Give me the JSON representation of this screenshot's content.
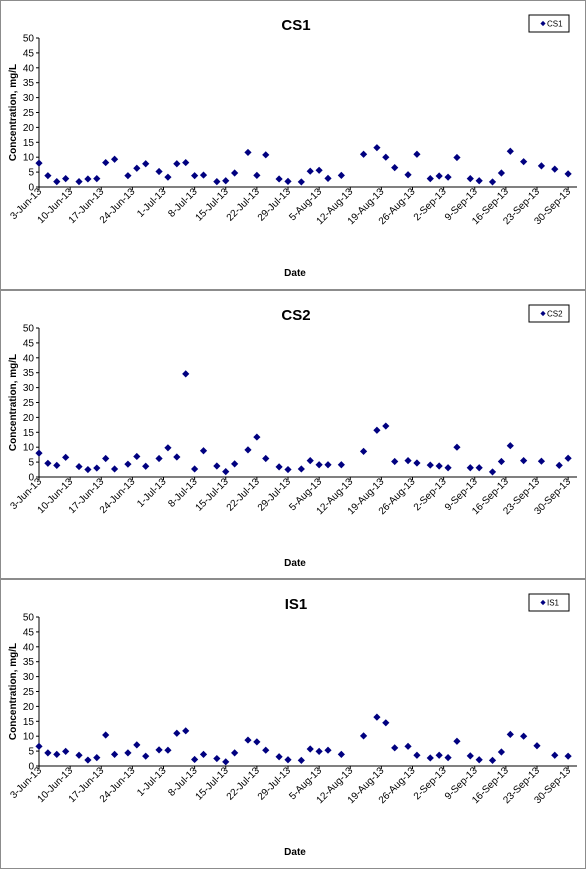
{
  "chart_data": [
    {
      "type": "scatter",
      "title": "CS1",
      "xlabel": "Date",
      "ylabel": "Concentration, mg/L",
      "legend": [
        "CS1"
      ],
      "legend_position": "top-right",
      "ylim": [
        0,
        50
      ],
      "yticks": [
        0,
        5,
        10,
        15,
        20,
        25,
        30,
        35,
        40,
        45,
        50
      ],
      "xlim": [
        "2013-06-03",
        "2013-10-02"
      ],
      "xtick_labels": [
        "3-Jun-13",
        "10-Jun-13",
        "17-Jun-13",
        "24-Jun-13",
        "1-Jul-13",
        "8-Jul-13",
        "15-Jul-13",
        "22-Jul-13",
        "29-Jul-13",
        "5-Aug-13",
        "12-Aug-13",
        "19-Aug-13",
        "26-Aug-13",
        "2-Sep-13",
        "9-Sep-13",
        "16-Sep-13",
        "23-Sep-13",
        "30-Sep-13"
      ],
      "marker_color": "#000080",
      "series": [
        {
          "name": "CS1",
          "points": [
            [
              "2013-06-03",
              8.0
            ],
            [
              "2013-06-05",
              3.8
            ],
            [
              "2013-06-07",
              1.8
            ],
            [
              "2013-06-09",
              2.8
            ],
            [
              "2013-06-12",
              1.8
            ],
            [
              "2013-06-14",
              2.7
            ],
            [
              "2013-06-16",
              2.8
            ],
            [
              "2013-06-18",
              8.2
            ],
            [
              "2013-06-20",
              9.3
            ],
            [
              "2013-06-23",
              3.8
            ],
            [
              "2013-06-25",
              6.3
            ],
            [
              "2013-06-27",
              7.8
            ],
            [
              "2013-06-30",
              5.2
            ],
            [
              "2013-07-02",
              3.3
            ],
            [
              "2013-07-04",
              7.8
            ],
            [
              "2013-07-06",
              8.2
            ],
            [
              "2013-07-08",
              3.8
            ],
            [
              "2013-07-10",
              4.0
            ],
            [
              "2013-07-13",
              1.8
            ],
            [
              "2013-07-15",
              2.1
            ],
            [
              "2013-07-17",
              4.7
            ],
            [
              "2013-07-20",
              11.6
            ],
            [
              "2013-07-22",
              3.9
            ],
            [
              "2013-07-24",
              10.8
            ],
            [
              "2013-07-27",
              2.7
            ],
            [
              "2013-07-29",
              1.9
            ],
            [
              "2013-08-01",
              1.7
            ],
            [
              "2013-08-03",
              5.3
            ],
            [
              "2013-08-05",
              5.6
            ],
            [
              "2013-08-07",
              2.9
            ],
            [
              "2013-08-10",
              3.9
            ],
            [
              "2013-08-15",
              11.0
            ],
            [
              "2013-08-18",
              13.2
            ],
            [
              "2013-08-20",
              10.0
            ],
            [
              "2013-08-22",
              6.5
            ],
            [
              "2013-08-25",
              4.1
            ],
            [
              "2013-08-27",
              11.0
            ],
            [
              "2013-08-30",
              2.8
            ],
            [
              "2013-09-01",
              3.7
            ],
            [
              "2013-09-03",
              3.3
            ],
            [
              "2013-09-05",
              9.9
            ],
            [
              "2013-09-08",
              2.8
            ],
            [
              "2013-09-10",
              2.1
            ],
            [
              "2013-09-13",
              1.7
            ],
            [
              "2013-09-15",
              4.7
            ],
            [
              "2013-09-17",
              12.0
            ],
            [
              "2013-09-20",
              8.5
            ],
            [
              "2013-09-24",
              7.1
            ],
            [
              "2013-09-27",
              6.0
            ],
            [
              "2013-09-30",
              4.4
            ]
          ]
        }
      ]
    },
    {
      "type": "scatter",
      "title": "CS2",
      "xlabel": "Date",
      "ylabel": "Concentration, mg/L",
      "legend": [
        "CS2"
      ],
      "legend_position": "top-right",
      "ylim": [
        0,
        50
      ],
      "yticks": [
        0,
        5,
        10,
        15,
        20,
        25,
        30,
        35,
        40,
        45,
        50
      ],
      "xlim": [
        "2013-06-03",
        "2013-10-02"
      ],
      "xtick_labels": [
        "3-Jun-13",
        "10-Jun-13",
        "17-Jun-13",
        "24-Jun-13",
        "1-Jul-13",
        "8-Jul-13",
        "15-Jul-13",
        "22-Jul-13",
        "29-Jul-13",
        "5-Aug-13",
        "12-Aug-13",
        "19-Aug-13",
        "26-Aug-13",
        "2-Sep-13",
        "9-Sep-13",
        "16-Sep-13",
        "23-Sep-13",
        "30-Sep-13"
      ],
      "marker_color": "#000080",
      "series": [
        {
          "name": "CS2",
          "points": [
            [
              "2013-06-03",
              8.0
            ],
            [
              "2013-06-05",
              4.6
            ],
            [
              "2013-06-07",
              3.9
            ],
            [
              "2013-06-09",
              6.6
            ],
            [
              "2013-06-12",
              3.5
            ],
            [
              "2013-06-14",
              2.5
            ],
            [
              "2013-06-16",
              3.0
            ],
            [
              "2013-06-18",
              6.2
            ],
            [
              "2013-06-20",
              2.7
            ],
            [
              "2013-06-23",
              4.3
            ],
            [
              "2013-06-25",
              6.9
            ],
            [
              "2013-06-27",
              3.6
            ],
            [
              "2013-06-30",
              6.2
            ],
            [
              "2013-07-02",
              9.8
            ],
            [
              "2013-07-04",
              6.7
            ],
            [
              "2013-07-06",
              34.6
            ],
            [
              "2013-07-08",
              2.7
            ],
            [
              "2013-07-10",
              8.8
            ],
            [
              "2013-07-13",
              3.7
            ],
            [
              "2013-07-15",
              1.8
            ],
            [
              "2013-07-17",
              4.4
            ],
            [
              "2013-07-20",
              9.1
            ],
            [
              "2013-07-22",
              13.4
            ],
            [
              "2013-07-24",
              6.2
            ],
            [
              "2013-07-27",
              3.4
            ],
            [
              "2013-07-29",
              2.5
            ],
            [
              "2013-08-01",
              2.7
            ],
            [
              "2013-08-03",
              5.5
            ],
            [
              "2013-08-05",
              4.1
            ],
            [
              "2013-08-07",
              4.1
            ],
            [
              "2013-08-10",
              4.1
            ],
            [
              "2013-08-15",
              8.6
            ],
            [
              "2013-08-18",
              15.7
            ],
            [
              "2013-08-20",
              17.1
            ],
            [
              "2013-08-22",
              5.2
            ],
            [
              "2013-08-25",
              5.5
            ],
            [
              "2013-08-27",
              4.7
            ],
            [
              "2013-08-30",
              4.0
            ],
            [
              "2013-09-01",
              3.7
            ],
            [
              "2013-09-03",
              3.1
            ],
            [
              "2013-09-05",
              10.0
            ],
            [
              "2013-09-08",
              3.1
            ],
            [
              "2013-09-10",
              3.1
            ],
            [
              "2013-09-13",
              1.7
            ],
            [
              "2013-09-15",
              5.2
            ],
            [
              "2013-09-17",
              10.5
            ],
            [
              "2013-09-20",
              5.5
            ],
            [
              "2013-09-24",
              5.3
            ],
            [
              "2013-09-28",
              3.9
            ],
            [
              "2013-09-30",
              6.3
            ]
          ]
        }
      ]
    },
    {
      "type": "scatter",
      "title": "IS1",
      "xlabel": "Date",
      "ylabel": "Concentration, mg/L",
      "legend": [
        "IS1"
      ],
      "legend_position": "top-right",
      "ylim": [
        0,
        50
      ],
      "yticks": [
        0,
        5,
        10,
        15,
        20,
        25,
        30,
        35,
        40,
        45,
        50
      ],
      "xlim": [
        "2013-06-03",
        "2013-10-02"
      ],
      "xtick_labels": [
        "3-Jun-13",
        "10-Jun-13",
        "17-Jun-13",
        "24-Jun-13",
        "1-Jul-13",
        "8-Jul-13",
        "15-Jul-13",
        "22-Jul-13",
        "29-Jul-13",
        "5-Aug-13",
        "12-Aug-13",
        "19-Aug-13",
        "26-Aug-13",
        "2-Sep-13",
        "9-Sep-13",
        "16-Sep-13",
        "23-Sep-13",
        "30-Sep-13"
      ],
      "marker_color": "#000080",
      "series": [
        {
          "name": "IS1",
          "points": [
            [
              "2013-06-03",
              6.6
            ],
            [
              "2013-06-05",
              4.4
            ],
            [
              "2013-06-07",
              3.9
            ],
            [
              "2013-06-09",
              4.9
            ],
            [
              "2013-06-12",
              3.6
            ],
            [
              "2013-06-14",
              2.0
            ],
            [
              "2013-06-16",
              2.8
            ],
            [
              "2013-06-18",
              10.4
            ],
            [
              "2013-06-20",
              3.9
            ],
            [
              "2013-06-23",
              4.4
            ],
            [
              "2013-06-25",
              7.1
            ],
            [
              "2013-06-27",
              3.3
            ],
            [
              "2013-06-30",
              5.4
            ],
            [
              "2013-07-02",
              5.3
            ],
            [
              "2013-07-04",
              11.0
            ],
            [
              "2013-07-06",
              11.8
            ],
            [
              "2013-07-08",
              2.2
            ],
            [
              "2013-07-10",
              3.9
            ],
            [
              "2013-07-13",
              2.5
            ],
            [
              "2013-07-15",
              1.4
            ],
            [
              "2013-07-17",
              4.4
            ],
            [
              "2013-07-20",
              8.7
            ],
            [
              "2013-07-22",
              8.1
            ],
            [
              "2013-07-24",
              5.3
            ],
            [
              "2013-07-27",
              3.1
            ],
            [
              "2013-07-29",
              2.1
            ],
            [
              "2013-08-01",
              1.9
            ],
            [
              "2013-08-03",
              5.7
            ],
            [
              "2013-08-05",
              4.9
            ],
            [
              "2013-08-07",
              5.3
            ],
            [
              "2013-08-10",
              3.9
            ],
            [
              "2013-08-15",
              10.1
            ],
            [
              "2013-08-18",
              16.4
            ],
            [
              "2013-08-20",
              14.5
            ],
            [
              "2013-08-22",
              6.1
            ],
            [
              "2013-08-25",
              6.6
            ],
            [
              "2013-08-27",
              3.6
            ],
            [
              "2013-08-30",
              2.7
            ],
            [
              "2013-09-01",
              3.6
            ],
            [
              "2013-09-03",
              2.8
            ],
            [
              "2013-09-05",
              8.3
            ],
            [
              "2013-09-08",
              3.4
            ],
            [
              "2013-09-10",
              2.1
            ],
            [
              "2013-09-13",
              1.9
            ],
            [
              "2013-09-15",
              4.7
            ],
            [
              "2013-09-17",
              10.6
            ],
            [
              "2013-09-20",
              10.0
            ],
            [
              "2013-09-23",
              6.8
            ],
            [
              "2013-09-27",
              3.6
            ],
            [
              "2013-09-30",
              3.3
            ]
          ]
        }
      ]
    }
  ]
}
